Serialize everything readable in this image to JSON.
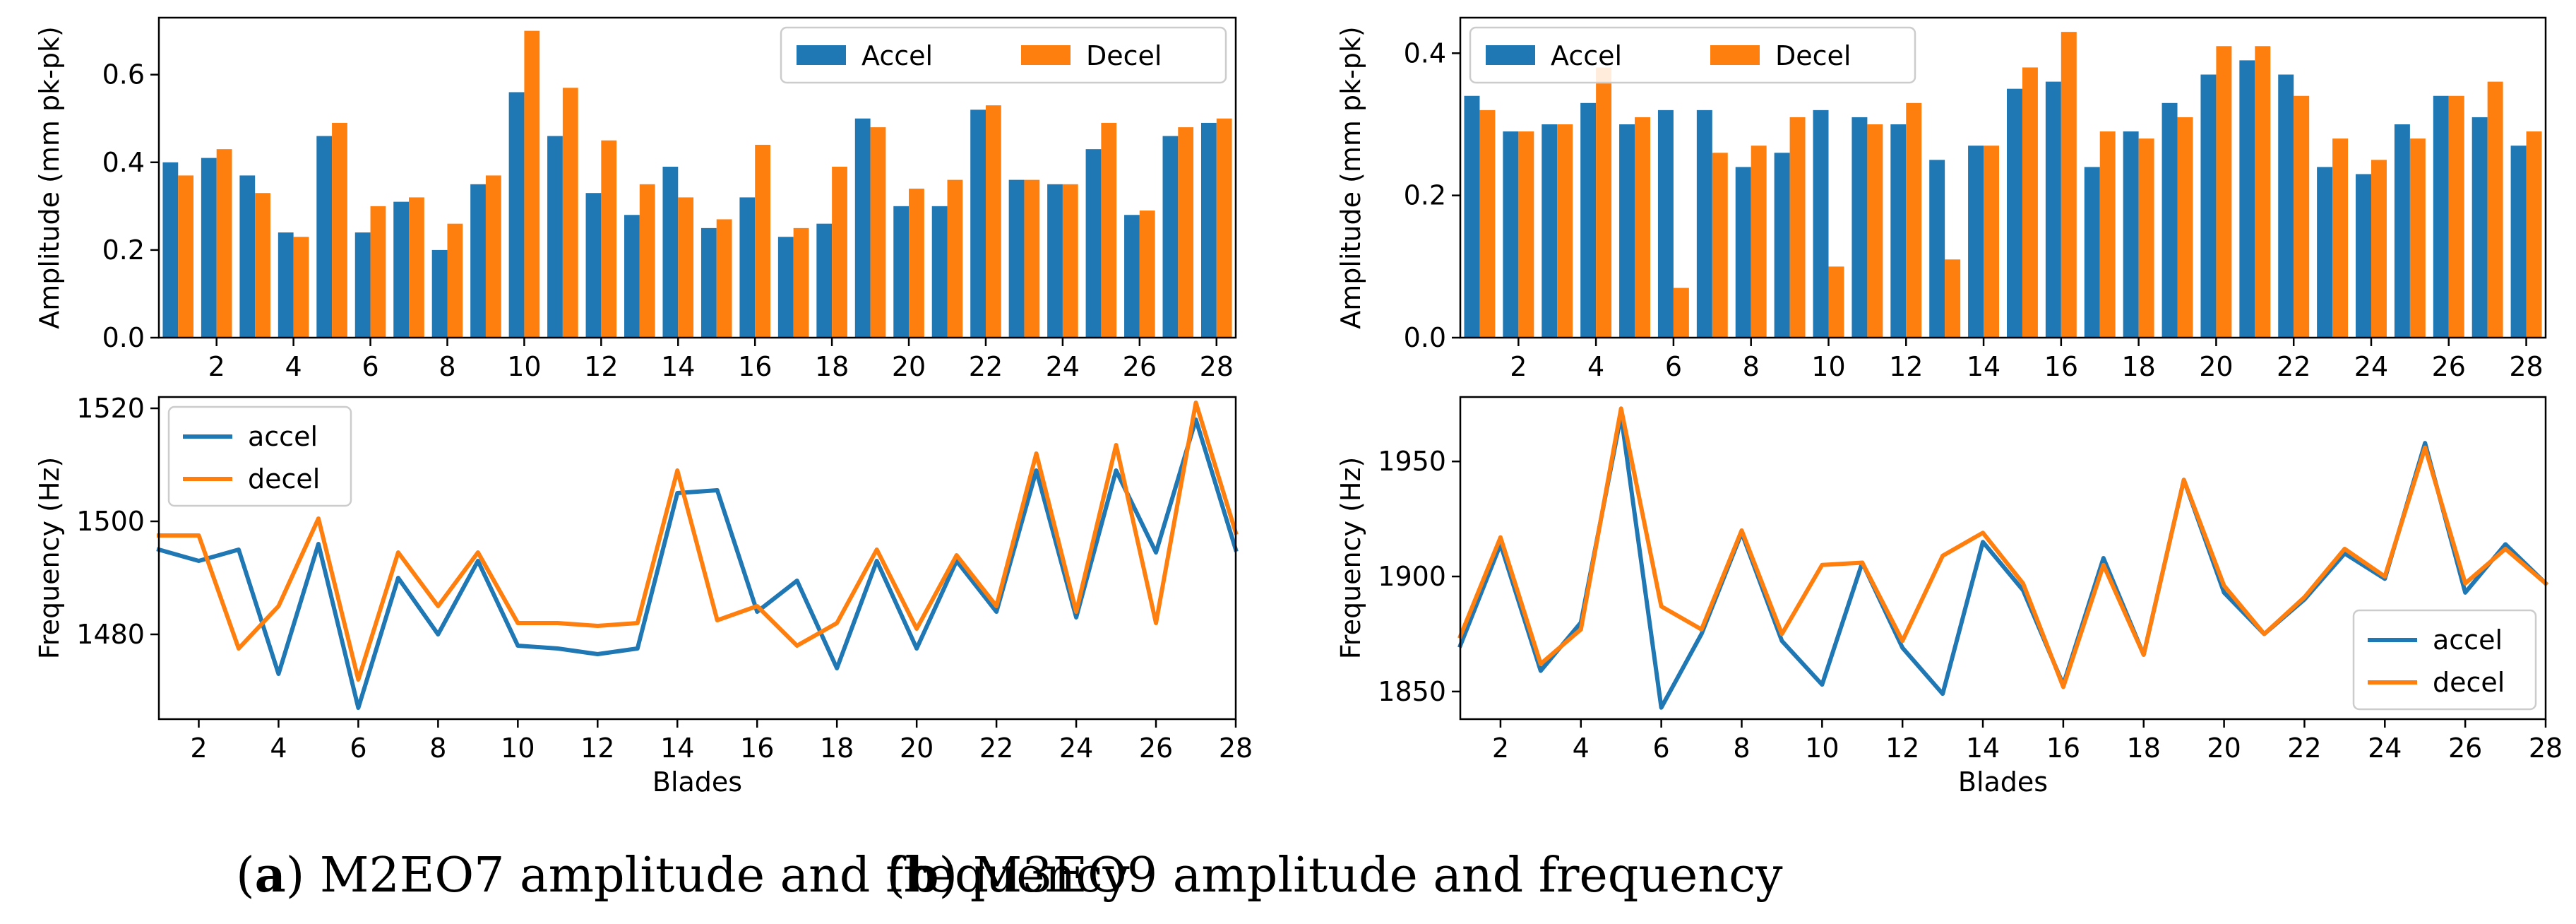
{
  "figure": {
    "captions": [
      {
        "letter": "a",
        "text": " M2EO7 amplitude and frequency"
      },
      {
        "letter": "b",
        "text": " M3EO9 amplitude and frequency"
      }
    ]
  },
  "colors": {
    "accel": "#1f77b4",
    "decel": "#ff7f0e"
  },
  "chart_data": [
    {
      "id": "a-amplitude",
      "type": "bar",
      "ylabel": "Amplitude (mm pk-pk)",
      "xlabel": "",
      "ylim": [
        0,
        0.73
      ],
      "yticks": [
        0.0,
        0.2,
        0.4,
        0.6
      ],
      "ytick_labels": [
        "0.0",
        "0.2",
        "0.4",
        "0.6"
      ],
      "xlim": [
        0.5,
        28.5
      ],
      "xticks": [
        2,
        4,
        6,
        8,
        10,
        12,
        14,
        16,
        18,
        20,
        22,
        24,
        26,
        28
      ],
      "categories": [
        1,
        2,
        3,
        4,
        5,
        6,
        7,
        8,
        9,
        10,
        11,
        12,
        13,
        14,
        15,
        16,
        17,
        18,
        19,
        20,
        21,
        22,
        23,
        24,
        25,
        26,
        27,
        28
      ],
      "legend": {
        "position": "top-right",
        "columns": 2
      },
      "series": [
        {
          "name": "Accel",
          "color": "#1f77b4",
          "values": [
            0.4,
            0.41,
            0.37,
            0.24,
            0.46,
            0.24,
            0.31,
            0.2,
            0.35,
            0.56,
            0.46,
            0.33,
            0.28,
            0.39,
            0.25,
            0.32,
            0.23,
            0.26,
            0.5,
            0.3,
            0.3,
            0.52,
            0.36,
            0.35,
            0.43,
            0.28,
            0.46,
            0.49
          ]
        },
        {
          "name": "Decel",
          "color": "#ff7f0e",
          "values": [
            0.37,
            0.43,
            0.33,
            0.23,
            0.49,
            0.3,
            0.32,
            0.26,
            0.37,
            0.7,
            0.57,
            0.45,
            0.35,
            0.32,
            0.27,
            0.44,
            0.25,
            0.39,
            0.48,
            0.34,
            0.36,
            0.53,
            0.36,
            0.35,
            0.49,
            0.29,
            0.48,
            0.5
          ]
        }
      ]
    },
    {
      "id": "a-frequency",
      "type": "line",
      "ylabel": "Frequency (Hz)",
      "xlabel": "Blades",
      "ylim": [
        1465,
        1522
      ],
      "yticks": [
        1480,
        1500,
        1520
      ],
      "ytick_labels": [
        "1480",
        "1500",
        "1520"
      ],
      "xlim": [
        1,
        28
      ],
      "xticks": [
        2,
        4,
        6,
        8,
        10,
        12,
        14,
        16,
        18,
        20,
        22,
        24,
        26,
        28
      ],
      "x": [
        1,
        2,
        3,
        4,
        5,
        6,
        7,
        8,
        9,
        10,
        11,
        12,
        13,
        14,
        15,
        16,
        17,
        18,
        19,
        20,
        21,
        22,
        23,
        24,
        25,
        26,
        27,
        28
      ],
      "legend": {
        "position": "top-left",
        "columns": 1
      },
      "series": [
        {
          "name": "accel",
          "color": "#1f77b4",
          "values": [
            1495,
            1493,
            1495,
            1473,
            1496,
            1467,
            1490,
            1480,
            1493,
            1478,
            1477.5,
            1476.5,
            1477.5,
            1505,
            1505.5,
            1484,
            1489.5,
            1474,
            1493,
            1477.5,
            1493,
            1484,
            1509,
            1483,
            1509,
            1494.5,
            1518,
            1495
          ]
        },
        {
          "name": "decel",
          "color": "#ff7f0e",
          "values": [
            1497.5,
            1497.5,
            1477.5,
            1485,
            1500.5,
            1472,
            1494.5,
            1485,
            1494.5,
            1482,
            1482,
            1481.5,
            1482,
            1509,
            1482.5,
            1485,
            1478,
            1482,
            1495,
            1481,
            1494,
            1485,
            1512,
            1484,
            1513.5,
            1482,
            1521,
            1498
          ]
        }
      ]
    },
    {
      "id": "b-amplitude",
      "type": "bar",
      "ylabel": "Amplitude (mm pk-pk)",
      "xlabel": "",
      "ylim": [
        0,
        0.45
      ],
      "yticks": [
        0.0,
        0.2,
        0.4
      ],
      "ytick_labels": [
        "0.0",
        "0.2",
        "0.4"
      ],
      "xlim": [
        0.5,
        28.5
      ],
      "xticks": [
        2,
        4,
        6,
        8,
        10,
        12,
        14,
        16,
        18,
        20,
        22,
        24,
        26,
        28
      ],
      "categories": [
        1,
        2,
        3,
        4,
        5,
        6,
        7,
        8,
        9,
        10,
        11,
        12,
        13,
        14,
        15,
        16,
        17,
        18,
        19,
        20,
        21,
        22,
        23,
        24,
        25,
        26,
        27,
        28
      ],
      "legend": {
        "position": "top-left",
        "columns": 2
      },
      "series": [
        {
          "name": "Accel",
          "color": "#1f77b4",
          "values": [
            0.34,
            0.29,
            0.3,
            0.33,
            0.3,
            0.32,
            0.32,
            0.24,
            0.26,
            0.32,
            0.31,
            0.3,
            0.25,
            0.27,
            0.35,
            0.36,
            0.24,
            0.29,
            0.33,
            0.37,
            0.39,
            0.37,
            0.24,
            0.23,
            0.3,
            0.34,
            0.31,
            0.27
          ]
        },
        {
          "name": "Decel",
          "color": "#ff7f0e",
          "values": [
            0.32,
            0.29,
            0.3,
            0.38,
            0.31,
            0.07,
            0.26,
            0.27,
            0.31,
            0.1,
            0.3,
            0.33,
            0.11,
            0.27,
            0.38,
            0.43,
            0.29,
            0.28,
            0.31,
            0.41,
            0.41,
            0.34,
            0.28,
            0.25,
            0.28,
            0.34,
            0.36,
            0.29
          ]
        }
      ]
    },
    {
      "id": "b-frequency",
      "type": "line",
      "ylabel": "Frequency (Hz)",
      "xlabel": "Blades",
      "ylim": [
        1838,
        1978
      ],
      "yticks": [
        1850,
        1900,
        1950
      ],
      "ytick_labels": [
        "1850",
        "1900",
        "1950"
      ],
      "xlim": [
        1,
        28
      ],
      "xticks": [
        2,
        4,
        6,
        8,
        10,
        12,
        14,
        16,
        18,
        20,
        22,
        24,
        26,
        28
      ],
      "x": [
        1,
        2,
        3,
        4,
        5,
        6,
        7,
        8,
        9,
        10,
        11,
        12,
        13,
        14,
        15,
        16,
        17,
        18,
        19,
        20,
        21,
        22,
        23,
        24,
        25,
        26,
        27,
        28
      ],
      "legend": {
        "position": "bottom-right",
        "columns": 1
      },
      "series": [
        {
          "name": "accel",
          "color": "#1f77b4",
          "values": [
            1870,
            1914,
            1859,
            1880,
            1970,
            1843,
            1875,
            1919,
            1872,
            1853,
            1906,
            1869,
            1849,
            1915,
            1894,
            1853,
            1908,
            1866,
            1942,
            1893,
            1875,
            1890,
            1910,
            1899,
            1958,
            1893,
            1914,
            1897
          ]
        },
        {
          "name": "decel",
          "color": "#ff7f0e",
          "values": [
            1874,
            1917,
            1862,
            1877,
            1973,
            1887,
            1877,
            1920,
            1875,
            1905,
            1906,
            1872,
            1909,
            1919,
            1897,
            1852,
            1905,
            1866,
            1942,
            1896,
            1875,
            1891,
            1912,
            1900,
            1956,
            1897,
            1912,
            1897
          ]
        }
      ]
    }
  ]
}
